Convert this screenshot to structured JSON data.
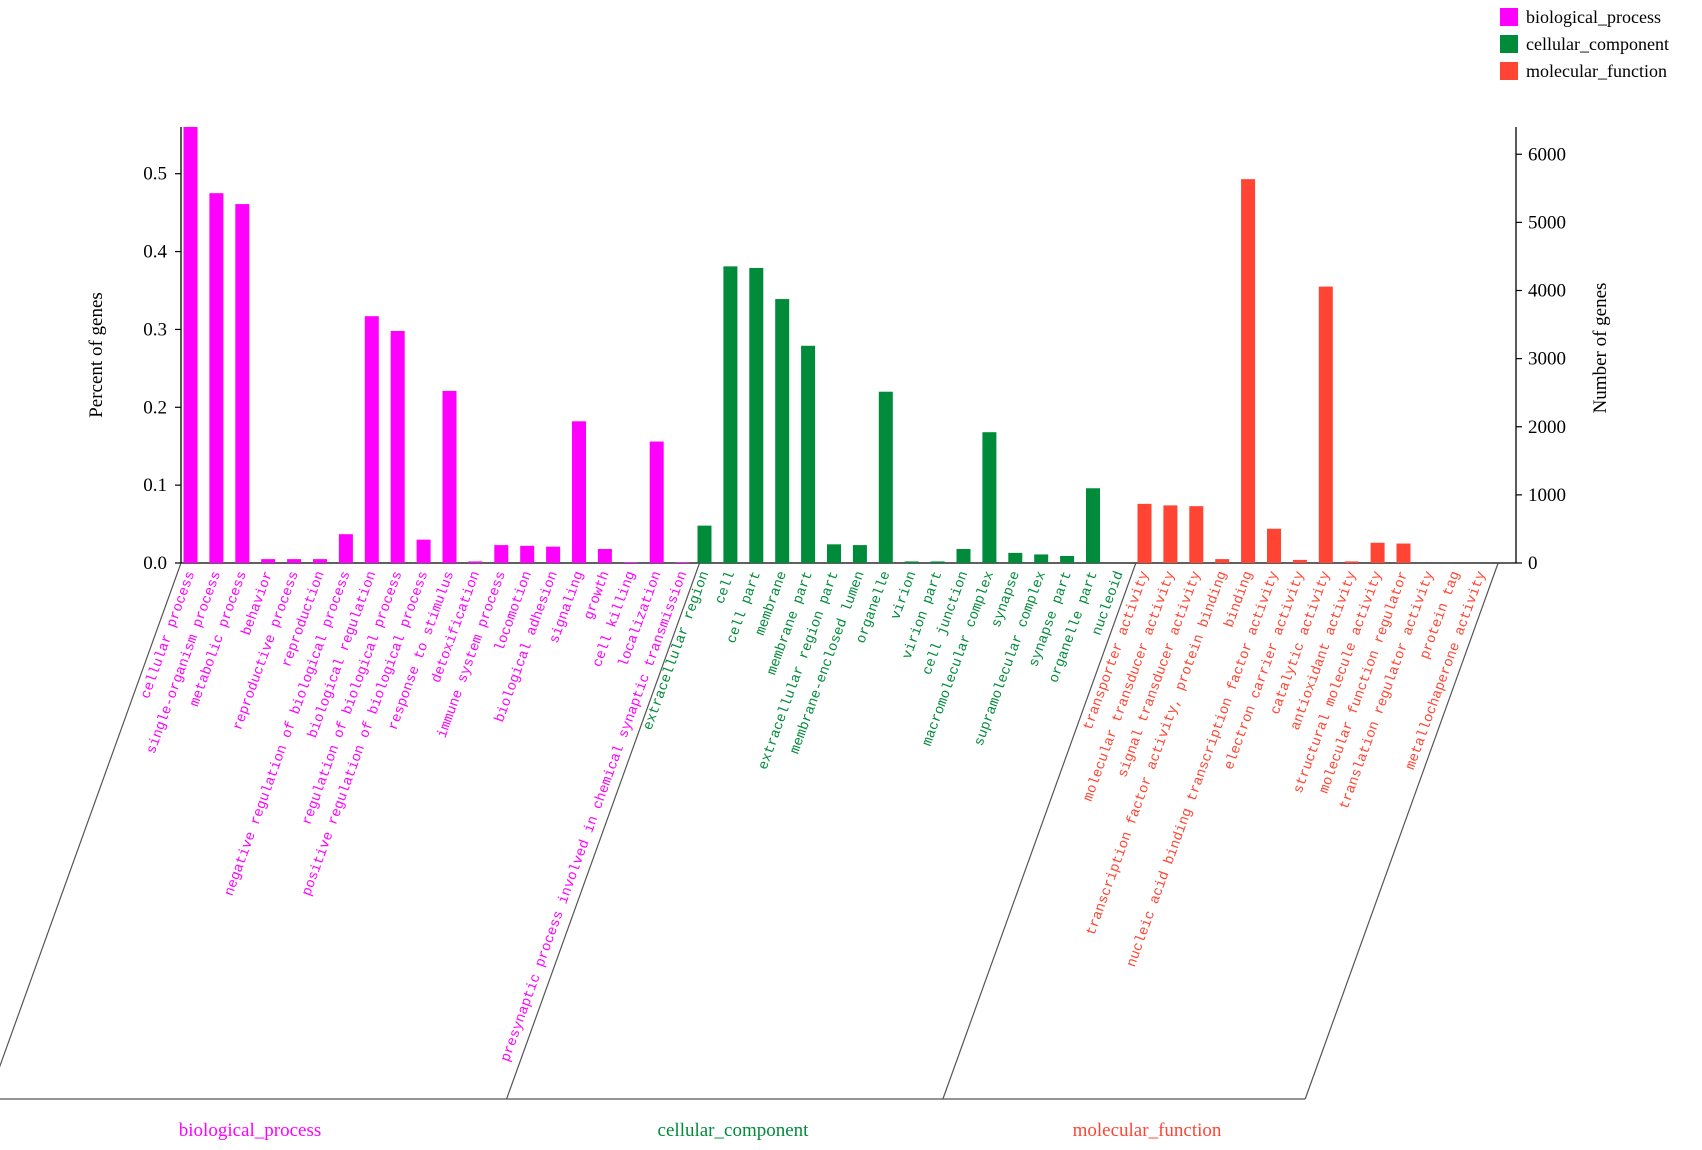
{
  "chart_data": {
    "type": "bar",
    "ylabel_left": "Percent of genes",
    "ylabel_right": "Number of genes",
    "ylim_left": [
      0,
      0.56
    ],
    "ylim_right": [
      0,
      6400
    ],
    "yticks_left": [
      "0.0",
      "0.1",
      "0.2",
      "0.3",
      "0.4",
      "0.5"
    ],
    "yticks_right": [
      "0",
      "1000",
      "2000",
      "3000",
      "4000",
      "5000",
      "6000"
    ],
    "legend_position": "top-right",
    "colors": {
      "biological_process": "#FF00FF",
      "cellular_component": "#008B3A",
      "molecular_function": "#FF4433"
    },
    "groups": [
      {
        "name": "biological_process",
        "label": "biological_process",
        "color": "#FF00FF",
        "categories": [
          "cellular process",
          "single-organism process",
          "metabolic process",
          "behavior",
          "reproductive process",
          "reproduction",
          "negative regulation of biological process",
          "biological regulation",
          "regulation of biological process",
          "positive regulation of biological process",
          "response to stimulus",
          "detoxification",
          "immune system process",
          "locomotion",
          "biological adhesion",
          "signaling",
          "growth",
          "cell killing",
          "localization",
          "presynaptic process involved in chemical synaptic transmission"
        ],
        "values": [
          0.562,
          0.475,
          0.461,
          0.005,
          0.005,
          0.005,
          0.037,
          0.317,
          0.298,
          0.03,
          0.221,
          0.002,
          0.023,
          0.022,
          0.021,
          0.182,
          0.018,
          0.001,
          0.156,
          0.001
        ]
      },
      {
        "name": "cellular_component",
        "label": "cellular_component",
        "color": "#008B3A",
        "categories": [
          "extracellular region",
          "cell",
          "cell part",
          "membrane",
          "membrane part",
          "extracellular region part",
          "membrane-enclosed lumen",
          "organelle",
          "virion",
          "virion part",
          "cell junction",
          "macromolecular complex",
          "synapse",
          "supramolecular complex",
          "synapse part",
          "organelle part",
          "nucleoid"
        ],
        "values": [
          0.048,
          0.381,
          0.379,
          0.339,
          0.279,
          0.024,
          0.023,
          0.22,
          0.002,
          0.002,
          0.018,
          0.168,
          0.013,
          0.011,
          0.009,
          0.096,
          0.0
        ]
      },
      {
        "name": "molecular_function",
        "label": "molecular_function",
        "color": "#FF4433",
        "categories": [
          "transporter activity",
          "molecular transducer activity",
          "signal transducer activity",
          "transcription factor activity, protein binding",
          "binding",
          "nucleic acid binding transcription factor activity",
          "electron carrier activity",
          "catalytic activity",
          "antioxidant activity",
          "structural molecule activity",
          "molecular function regulator",
          "translation regulator activity",
          "protein tag",
          "metallochaperone activity"
        ],
        "values": [
          0.076,
          0.074,
          0.073,
          0.005,
          0.493,
          0.044,
          0.004,
          0.355,
          0.002,
          0.026,
          0.025,
          0.0,
          0.0,
          0.0
        ]
      }
    ]
  }
}
